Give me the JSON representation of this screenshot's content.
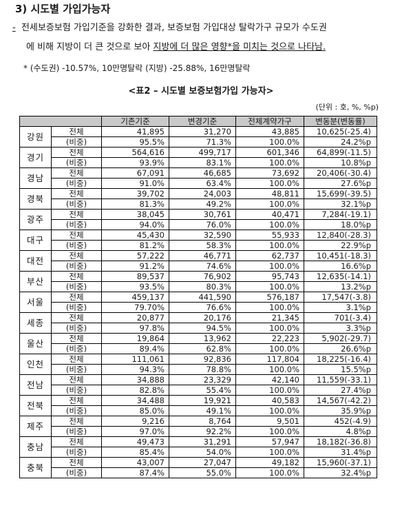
{
  "heading": "3) 시도별 가입가능자",
  "paragraph": {
    "bullet": "-",
    "line1": "전세보증보험 가입기준을 강화한 결과, 보증보험 가입대상 탈락가구 규모가 수도권",
    "line2_plain": "에 비해 지방이 더 큰 것으로 보아 ",
    "line2_underlined": "지방에 더 많은 영향*을 미치는 것으로 나타남."
  },
  "note": "* (수도권) -10.57%, 10만명탈락 (지방) -25.88%, 16만명탈락",
  "table_title": "<표2 – 시도별 보증보험가입 가능자>",
  "unit": "(단위 : 호, %, %p)",
  "columns": [
    "기존기준",
    "변경기준",
    "전체계약가구",
    "변동분(변동률)"
  ],
  "rows": [
    {
      "region": "강원",
      "total": [
        "41,895",
        "31,270",
        "43,885",
        "10,625(-25.4)"
      ],
      "ratio": [
        "95.5%",
        "71.3%",
        "100.0%",
        "24.2%p"
      ]
    },
    {
      "region": "경기",
      "total": [
        "564,616",
        "499,717",
        "601,346",
        "64,899(-11.5)"
      ],
      "ratio": [
        "93.9%",
        "83.1%",
        "100.0%",
        "10.8%p"
      ]
    },
    {
      "region": "경남",
      "total": [
        "67,091",
        "46,685",
        "73,692",
        "20,406(-30.4)"
      ],
      "ratio": [
        "91.0%",
        "63.4%",
        "100.0%",
        "27.6%p"
      ]
    },
    {
      "region": "경북",
      "total": [
        "39,702",
        "24,003",
        "48,811",
        "15,699(-39.5)"
      ],
      "ratio": [
        "81.3%",
        "49.2%",
        "100.0%",
        "32.1%p"
      ]
    },
    {
      "region": "광주",
      "total": [
        "38,045",
        "30,761",
        "40,471",
        "7,284(-19.1)"
      ],
      "ratio": [
        "94.0%",
        "76.0%",
        "100.0%",
        "18.0%p"
      ]
    },
    {
      "region": "대구",
      "total": [
        "45,430",
        "32,590",
        "55,933",
        "12,840(-28.3)"
      ],
      "ratio": [
        "81.2%",
        "58.3%",
        "100.0%",
        "22.9%p"
      ]
    },
    {
      "region": "대전",
      "total": [
        "57,222",
        "46,771",
        "62,737",
        "10,451(-18.3)"
      ],
      "ratio": [
        "91.2%",
        "74.6%",
        "100.0%",
        "16.6%p"
      ]
    },
    {
      "region": "부산",
      "total": [
        "89,537",
        "76,902",
        "95,743",
        "12,635(-14.1)"
      ],
      "ratio": [
        "93.5%",
        "80.3%",
        "100.0%",
        "13.2%p"
      ]
    },
    {
      "region": "서울",
      "total": [
        "459,137",
        "441,590",
        "576,187",
        "17,547(-3.8)"
      ],
      "ratio": [
        "79.70%",
        "76.6%",
        "100.0%",
        "3.1%p"
      ]
    },
    {
      "region": "세종",
      "total": [
        "20,877",
        "20,176",
        "21,345",
        "701(-3.4)"
      ],
      "ratio": [
        "97.8%",
        "94.5%",
        "100.0%",
        "3.3%p"
      ]
    },
    {
      "region": "울산",
      "total": [
        "19,864",
        "13,962",
        "22,223",
        "5,902(-29.7)"
      ],
      "ratio": [
        "89.4%",
        "62.8%",
        "100.0%",
        "26.6%p"
      ]
    },
    {
      "region": "인천",
      "total": [
        "111,061",
        "92,836",
        "117,804",
        "18,225(-16.4)"
      ],
      "ratio": [
        "94.3%",
        "78.8%",
        "100.0%",
        "15.5%p"
      ]
    },
    {
      "region": "전남",
      "total": [
        "34,888",
        "23,329",
        "42,140",
        "11,559(-33.1)"
      ],
      "ratio": [
        "82.8%",
        "55.4%",
        "100.0%",
        "27.4%p"
      ]
    },
    {
      "region": "전북",
      "total": [
        "34,488",
        "19,921",
        "40,583",
        "14,567(-42.2)"
      ],
      "ratio": [
        "85.0%",
        "49.1%",
        "100.0%",
        "35.9%p"
      ]
    },
    {
      "region": "제주",
      "total": [
        "9,216",
        "8,764",
        "9,501",
        "452(-4.9)"
      ],
      "ratio": [
        "97.0%",
        "92.2%",
        "100.0%",
        "4.8%p"
      ]
    },
    {
      "region": "충남",
      "total": [
        "49,473",
        "31,291",
        "57,947",
        "18,182(-36.8)"
      ],
      "ratio": [
        "85.4%",
        "54.0%",
        "100.0%",
        "31.4%p"
      ]
    },
    {
      "region": "충북",
      "total": [
        "43,007",
        "27,047",
        "49,182",
        "15,960(-37.1)"
      ],
      "ratio": [
        "87.4%",
        "55.0%",
        "100.0%",
        "32.4%p"
      ]
    }
  ],
  "row_labels": {
    "total": "전체",
    "ratio": "(비중)"
  }
}
